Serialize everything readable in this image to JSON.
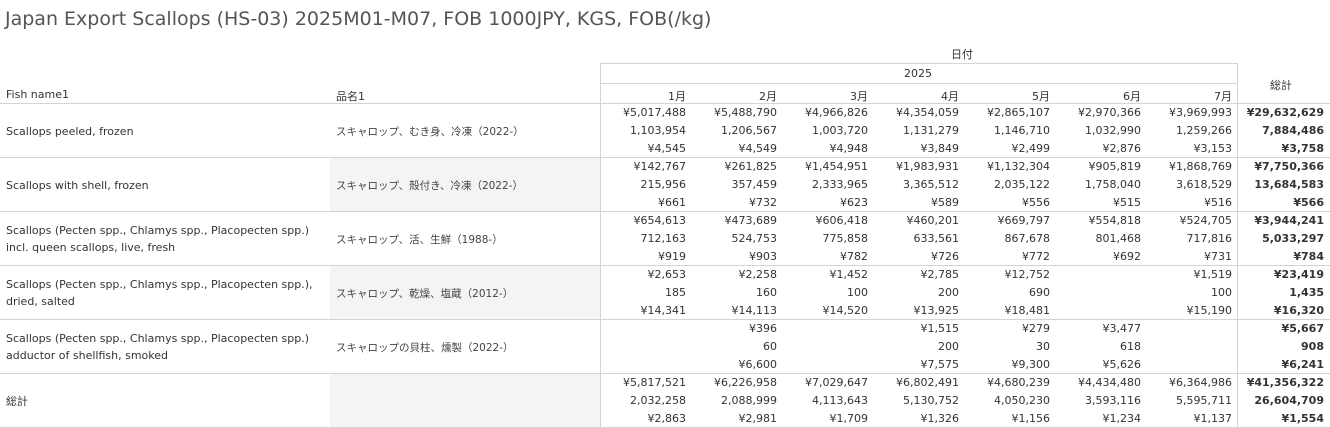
{
  "title": "Japan Export Scallops (HS-03) 2025M01-M07, FOB 1000JPY, KGS, FOB(/kg)",
  "header": {
    "date_label": "日付",
    "year": "2025",
    "grand_total": "総計",
    "fish_name": "Fish name1",
    "jp_name": "品名1",
    "months": [
      "1月",
      "2月",
      "3月",
      "4月",
      "5月",
      "6月",
      "7月"
    ]
  },
  "rows": [
    {
      "fish_lines": [
        "Scallops peeled, frozen"
      ],
      "jp": "スキャロップ、むき身、冷凍（2022-）",
      "months": [
        [
          "¥5,017,488",
          "1,103,954",
          "¥4,545"
        ],
        [
          "¥5,488,790",
          "1,206,567",
          "¥4,549"
        ],
        [
          "¥4,966,826",
          "1,003,720",
          "¥4,948"
        ],
        [
          "¥4,354,059",
          "1,131,279",
          "¥3,849"
        ],
        [
          "¥2,865,107",
          "1,146,710",
          "¥2,499"
        ],
        [
          "¥2,970,366",
          "1,032,990",
          "¥2,876"
        ],
        [
          "¥3,969,993",
          "1,259,266",
          "¥3,153"
        ]
      ],
      "total": [
        "¥29,632,629",
        "7,884,486",
        "¥3,758"
      ]
    },
    {
      "fish_lines": [
        "Scallops with shell, frozen"
      ],
      "jp": "スキャロップ、殻付き、冷凍（2022-）",
      "months": [
        [
          "¥142,767",
          "215,956",
          "¥661"
        ],
        [
          "¥261,825",
          "357,459",
          "¥732"
        ],
        [
          "¥1,454,951",
          "2,333,965",
          "¥623"
        ],
        [
          "¥1,983,931",
          "3,365,512",
          "¥589"
        ],
        [
          "¥1,132,304",
          "2,035,122",
          "¥556"
        ],
        [
          "¥905,819",
          "1,758,040",
          "¥515"
        ],
        [
          "¥1,868,769",
          "3,618,529",
          "¥516"
        ]
      ],
      "total": [
        "¥7,750,366",
        "13,684,583",
        "¥566"
      ]
    },
    {
      "fish_lines": [
        "Scallops (Pecten spp., Chlamys spp., Placopecten spp.)",
        "incl. queen scallops, live, fresh"
      ],
      "jp": "スキャロップ、活、生鮮（1988-）",
      "months": [
        [
          "¥654,613",
          "712,163",
          "¥919"
        ],
        [
          "¥473,689",
          "524,753",
          "¥903"
        ],
        [
          "¥606,418",
          "775,858",
          "¥782"
        ],
        [
          "¥460,201",
          "633,561",
          "¥726"
        ],
        [
          "¥669,797",
          "867,678",
          "¥772"
        ],
        [
          "¥554,818",
          "801,468",
          "¥692"
        ],
        [
          "¥524,705",
          "717,816",
          "¥731"
        ]
      ],
      "total": [
        "¥3,944,241",
        "5,033,297",
        "¥784"
      ]
    },
    {
      "fish_lines": [
        "Scallops (Pecten spp., Chlamys spp., Placopecten spp.),",
        "dried, salted"
      ],
      "jp": "スキャロップ、乾燥、塩蔵（2012-）",
      "months": [
        [
          "¥2,653",
          "185",
          "¥14,341"
        ],
        [
          "¥2,258",
          "160",
          "¥14,113"
        ],
        [
          "¥1,452",
          "100",
          "¥14,520"
        ],
        [
          "¥2,785",
          "200",
          "¥13,925"
        ],
        [
          "¥12,752",
          "690",
          "¥18,481"
        ],
        [
          "",
          "",
          ""
        ],
        [
          "¥1,519",
          "100",
          "¥15,190"
        ]
      ],
      "total": [
        "¥23,419",
        "1,435",
        "¥16,320"
      ]
    },
    {
      "fish_lines": [
        "Scallops (Pecten spp., Chlamys spp., Placopecten spp.)",
        "adductor of shellfish, smoked"
      ],
      "jp": "スキャロップの貝柱、燻製（2022-）",
      "months": [
        [
          "",
          "",
          ""
        ],
        [
          "¥396",
          "60",
          "¥6,600"
        ],
        [
          "",
          "",
          ""
        ],
        [
          "¥1,515",
          "200",
          "¥7,575"
        ],
        [
          "¥279",
          "30",
          "¥9,300"
        ],
        [
          "¥3,477",
          "618",
          "¥5,626"
        ],
        [
          "",
          "",
          ""
        ]
      ],
      "total": [
        "¥5,667",
        "908",
        "¥6,241"
      ]
    },
    {
      "fish_lines": [
        "総計"
      ],
      "jp": "",
      "months": [
        [
          "¥5,817,521",
          "2,032,258",
          "¥2,863"
        ],
        [
          "¥6,226,958",
          "2,088,999",
          "¥2,981"
        ],
        [
          "¥7,029,647",
          "4,113,643",
          "¥1,709"
        ],
        [
          "¥6,802,491",
          "5,130,752",
          "¥1,326"
        ],
        [
          "¥4,680,239",
          "4,050,230",
          "¥1,156"
        ],
        [
          "¥4,434,480",
          "3,593,116",
          "¥1,234"
        ],
        [
          "¥6,364,986",
          "5,595,711",
          "¥1,137"
        ]
      ],
      "total": [
        "¥41,356,322",
        "26,604,709",
        "¥1,554"
      ]
    }
  ]
}
